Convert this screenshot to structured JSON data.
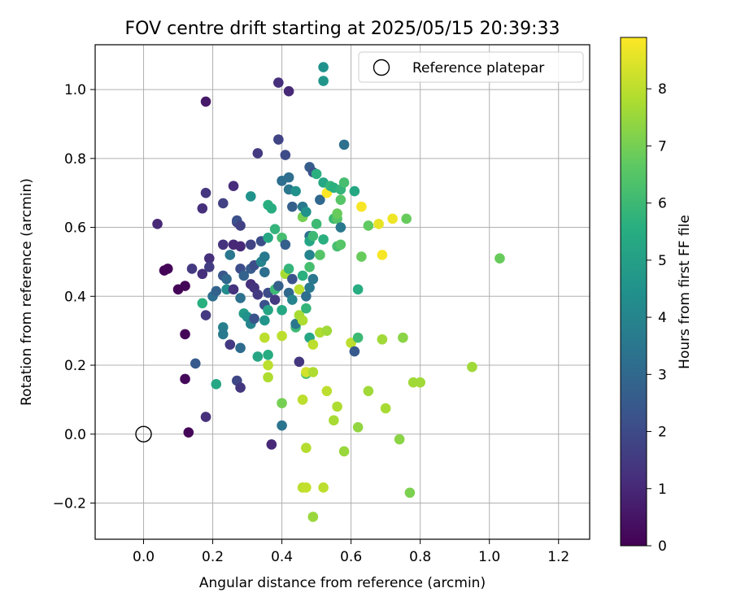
{
  "chart_data": {
    "type": "scatter",
    "title": "FOV centre drift starting at 2025/05/15 20:39:33",
    "xlabel": "Angular distance from reference (arcmin)",
    "ylabel": "Rotation from reference (arcmin)",
    "xlim": [
      -0.14,
      1.29
    ],
    "ylim": [
      -0.305,
      1.13
    ],
    "xticks": [
      0.0,
      0.2,
      0.4,
      0.6,
      0.8,
      1.0,
      1.2
    ],
    "xtick_labels": [
      "0.0",
      "0.2",
      "0.4",
      "0.6",
      "0.8",
      "1.0",
      "1.2"
    ],
    "yticks": [
      -0.2,
      0.0,
      0.2,
      0.4,
      0.6,
      0.8,
      1.0
    ],
    "ytick_labels": [
      "−0.2",
      "0.0",
      "0.2",
      "0.4",
      "0.6",
      "0.8",
      "1.0"
    ],
    "grid": true,
    "legend": {
      "position": "top-right",
      "entries": [
        "Reference platepar"
      ]
    },
    "reference_point": {
      "name": "Reference platepar",
      "x": 0.0,
      "y": 0.0,
      "marker": "open-circle"
    },
    "colormap": "viridis",
    "colorbar": {
      "label": "Hours from first FF file",
      "min": 0,
      "max": 8.9,
      "ticks": [
        0,
        1,
        2,
        3,
        4,
        5,
        6,
        7,
        8
      ],
      "tick_labels": [
        "0",
        "1",
        "2",
        "3",
        "4",
        "5",
        "6",
        "7",
        "8"
      ]
    },
    "points": [
      [
        0.04,
        0.61,
        1.0
      ],
      [
        0.06,
        0.475,
        0.1
      ],
      [
        0.07,
        0.48,
        0.1
      ],
      [
        0.1,
        0.42,
        0.1
      ],
      [
        0.12,
        0.43,
        0.1
      ],
      [
        0.12,
        0.29,
        0.1
      ],
      [
        0.12,
        0.16,
        0.2
      ],
      [
        0.13,
        0.005,
        0.1
      ],
      [
        0.18,
        0.965,
        0.6
      ],
      [
        0.14,
        0.48,
        1.5
      ],
      [
        0.15,
        0.205,
        2.5
      ],
      [
        0.17,
        0.655,
        1.2
      ],
      [
        0.17,
        0.465,
        1.2
      ],
      [
        0.18,
        0.7,
        1.4
      ],
      [
        0.18,
        0.05,
        1.2
      ],
      [
        0.19,
        0.51,
        1.2
      ],
      [
        0.19,
        0.485,
        1.6
      ],
      [
        0.18,
        0.345,
        1.5
      ],
      [
        0.17,
        0.38,
        5.6
      ],
      [
        0.2,
        0.4,
        3.2
      ],
      [
        0.21,
        0.415,
        2.8
      ],
      [
        0.21,
        0.145,
        5.3
      ],
      [
        0.23,
        0.67,
        1.7
      ],
      [
        0.23,
        0.55,
        1.3
      ],
      [
        0.23,
        0.46,
        2.4
      ],
      [
        0.23,
        0.31,
        3.8
      ],
      [
        0.23,
        0.29,
        3.6
      ],
      [
        0.24,
        0.45,
        3.0
      ],
      [
        0.24,
        0.42,
        4.3
      ],
      [
        0.25,
        0.26,
        1.5
      ],
      [
        0.25,
        0.52,
        3.5
      ],
      [
        0.26,
        0.72,
        1.1
      ],
      [
        0.26,
        0.55,
        1.0
      ],
      [
        0.26,
        0.42,
        1.3
      ],
      [
        0.27,
        0.615,
        1.6
      ],
      [
        0.27,
        0.155,
        1.9
      ],
      [
        0.27,
        0.62,
        2.2
      ],
      [
        0.28,
        0.545,
        1.0
      ],
      [
        0.28,
        0.605,
        1.7
      ],
      [
        0.28,
        0.135,
        1.4
      ],
      [
        0.28,
        0.48,
        2.1
      ],
      [
        0.28,
        0.25,
        3.1
      ],
      [
        0.29,
        0.35,
        4.8
      ],
      [
        0.28,
        0.395,
        3.3
      ],
      [
        0.29,
        0.46,
        2.8
      ],
      [
        0.3,
        0.34,
        4.5
      ],
      [
        0.31,
        0.55,
        1.8
      ],
      [
        0.31,
        0.48,
        2.6
      ],
      [
        0.31,
        0.435,
        1.2
      ],
      [
        0.31,
        0.32,
        4.0
      ],
      [
        0.31,
        0.69,
        4.5
      ],
      [
        0.32,
        0.425,
        1.3
      ],
      [
        0.32,
        0.335,
        2.3
      ],
      [
        0.33,
        0.405,
        1.5
      ],
      [
        0.33,
        0.815,
        1.5
      ],
      [
        0.32,
        0.49,
        2.1
      ],
      [
        0.33,
        0.225,
        5.2
      ],
      [
        0.34,
        0.56,
        2.1
      ],
      [
        0.34,
        0.5,
        4.0
      ],
      [
        0.35,
        0.47,
        3.2
      ],
      [
        0.35,
        0.375,
        2.2
      ],
      [
        0.35,
        0.33,
        4.6
      ],
      [
        0.35,
        0.28,
        8.0
      ],
      [
        0.35,
        0.515,
        3.6
      ],
      [
        0.36,
        0.665,
        5.6
      ],
      [
        0.36,
        0.41,
        2.0
      ],
      [
        0.36,
        0.23,
        5.5
      ],
      [
        0.36,
        0.2,
        8.0
      ],
      [
        0.36,
        0.165,
        7.8
      ],
      [
        0.36,
        0.36,
        5.2
      ],
      [
        0.36,
        0.57,
        5.3
      ],
      [
        0.37,
        0.655,
        5.5
      ],
      [
        0.37,
        -0.03,
        1.0
      ],
      [
        0.38,
        0.42,
        6.0
      ],
      [
        0.38,
        0.39,
        1.5
      ],
      [
        0.38,
        0.595,
        5.8
      ],
      [
        0.39,
        1.02,
        1.2
      ],
      [
        0.39,
        0.855,
        1.8
      ],
      [
        0.39,
        0.43,
        2.7
      ],
      [
        0.4,
        0.735,
        3.2
      ],
      [
        0.4,
        0.36,
        5.3
      ],
      [
        0.4,
        0.09,
        7.0
      ],
      [
        0.4,
        0.285,
        8.0
      ],
      [
        0.4,
        0.025,
        3.4
      ],
      [
        0.4,
        0.57,
        6.2
      ],
      [
        0.41,
        0.81,
        2.0
      ],
      [
        0.41,
        0.55,
        2.7
      ],
      [
        0.41,
        0.465,
        7.7
      ],
      [
        0.42,
        0.995,
        1.0
      ],
      [
        0.42,
        0.745,
        3.2
      ],
      [
        0.42,
        0.71,
        3.5
      ],
      [
        0.42,
        0.48,
        5.8
      ],
      [
        0.42,
        0.41,
        3.0
      ],
      [
        0.43,
        0.66,
        2.7
      ],
      [
        0.43,
        0.39,
        4.0
      ],
      [
        0.43,
        0.45,
        2.3
      ],
      [
        0.44,
        0.705,
        4.5
      ],
      [
        0.44,
        0.31,
        6.0
      ],
      [
        0.44,
        0.32,
        3.5
      ],
      [
        0.45,
        0.345,
        7.7
      ],
      [
        0.45,
        0.21,
        1.4
      ],
      [
        0.45,
        0.42,
        8.0
      ],
      [
        0.46,
        0.66,
        3.6
      ],
      [
        0.46,
        0.63,
        7.0
      ],
      [
        0.46,
        0.46,
        5.6
      ],
      [
        0.46,
        0.33,
        7.8
      ],
      [
        0.46,
        0.1,
        8.0
      ],
      [
        0.46,
        -0.155,
        8.0
      ],
      [
        0.47,
        0.645,
        4.5
      ],
      [
        0.47,
        0.365,
        5.8
      ],
      [
        0.47,
        0.175,
        6.2
      ],
      [
        0.47,
        -0.155,
        8.1
      ],
      [
        0.47,
        -0.04,
        7.9
      ],
      [
        0.47,
        0.18,
        8.3
      ],
      [
        0.47,
        0.4,
        3.2
      ],
      [
        0.48,
        0.775,
        2.6
      ],
      [
        0.48,
        0.52,
        4.0
      ],
      [
        0.48,
        0.575,
        3.2
      ],
      [
        0.48,
        0.56,
        5.2
      ],
      [
        0.48,
        0.28,
        5.2
      ],
      [
        0.48,
        0.425,
        3.6
      ],
      [
        0.48,
        0.485,
        6.2
      ],
      [
        0.49,
        0.76,
        2.3
      ],
      [
        0.49,
        0.575,
        6.0
      ],
      [
        0.49,
        0.45,
        3.5
      ],
      [
        0.49,
        0.26,
        8.0
      ],
      [
        0.49,
        0.18,
        7.8
      ],
      [
        0.49,
        -0.24,
        7.5
      ],
      [
        0.5,
        0.755,
        5.6
      ],
      [
        0.5,
        0.61,
        6.0
      ],
      [
        0.51,
        0.52,
        5.3
      ],
      [
        0.51,
        0.295,
        7.8
      ],
      [
        0.51,
        0.68,
        3.0
      ],
      [
        0.51,
        0.52,
        6.5
      ],
      [
        0.52,
        -0.155,
        8.0
      ],
      [
        0.52,
        1.065,
        4.5
      ],
      [
        0.52,
        1.025,
        4.6
      ],
      [
        0.52,
        0.73,
        5.3
      ],
      [
        0.52,
        0.565,
        5.6
      ],
      [
        0.53,
        0.125,
        8.0
      ],
      [
        0.53,
        0.3,
        7.6
      ],
      [
        0.53,
        0.7,
        8.9
      ],
      [
        0.54,
        0.72,
        5.8
      ],
      [
        0.55,
        0.625,
        6.0
      ],
      [
        0.55,
        0.04,
        7.7
      ],
      [
        0.55,
        0.715,
        5.6
      ],
      [
        0.56,
        0.545,
        6.2
      ],
      [
        0.56,
        0.08,
        7.8
      ],
      [
        0.56,
        0.625,
        6.5
      ],
      [
        0.56,
        0.64,
        6.8
      ],
      [
        0.57,
        0.6,
        3.6
      ],
      [
        0.57,
        0.68,
        6.5
      ],
      [
        0.57,
        0.55,
        6.5
      ],
      [
        0.57,
        0.71,
        5.8
      ],
      [
        0.58,
        0.84,
        3.3
      ],
      [
        0.58,
        0.73,
        6.2
      ],
      [
        0.58,
        -0.05,
        7.5
      ],
      [
        0.6,
        0.265,
        7.5
      ],
      [
        0.6,
        0.265,
        8.0
      ],
      [
        0.61,
        0.24,
        2.5
      ],
      [
        0.61,
        0.705,
        5.3
      ],
      [
        0.62,
        0.42,
        5.5
      ],
      [
        0.62,
        0.28,
        6.0
      ],
      [
        0.62,
        0.02,
        7.4
      ],
      [
        0.63,
        0.66,
        8.8
      ],
      [
        0.63,
        0.515,
        6.8
      ],
      [
        0.65,
        0.605,
        6.7
      ],
      [
        0.65,
        0.125,
        7.6
      ],
      [
        0.68,
        0.61,
        8.6
      ],
      [
        0.69,
        0.52,
        8.8
      ],
      [
        0.69,
        0.275,
        7.6
      ],
      [
        0.7,
        0.075,
        7.7
      ],
      [
        0.72,
        0.625,
        8.7
      ],
      [
        0.74,
        -0.015,
        7.3
      ],
      [
        0.75,
        0.28,
        7.3
      ],
      [
        0.76,
        0.625,
        6.8
      ],
      [
        0.77,
        -0.17,
        7.1
      ],
      [
        0.78,
        0.15,
        7.6
      ],
      [
        0.8,
        0.15,
        7.6
      ],
      [
        0.95,
        0.195,
        7.6
      ],
      [
        1.03,
        0.51,
        6.8
      ]
    ]
  }
}
